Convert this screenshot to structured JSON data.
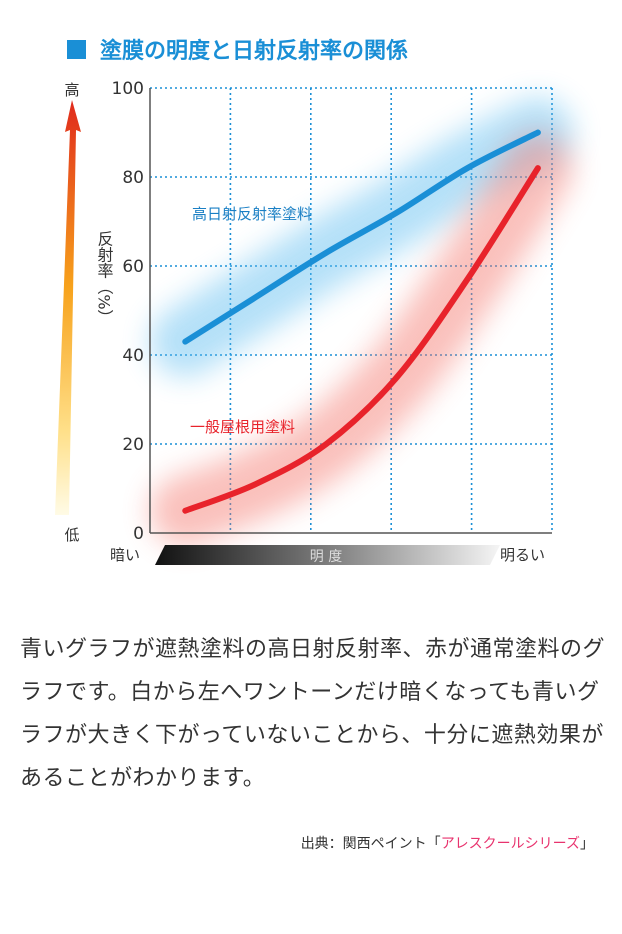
{
  "chart_data": {
    "type": "line",
    "title": "塗膜の明度と日射反射率の関係",
    "ylabel": "反射率（%）",
    "xlabel": "明 度",
    "x_low_label": "暗い",
    "x_high_label": "明るい",
    "y_high_label": "高",
    "y_low_label": "低",
    "ylim": [
      0,
      100
    ],
    "yticks": [
      "0",
      "20",
      "40",
      "60",
      "80",
      "100"
    ],
    "grid": true,
    "series": [
      {
        "name": "高日射反射率塗料",
        "color": "#1a8fd6",
        "x": [
          1,
          2,
          3,
          4,
          5,
          6
        ],
        "y": [
          43,
          53,
          63,
          72,
          82,
          90
        ]
      },
      {
        "name": "一般屋根用塗料",
        "color": "#e8232b",
        "x": [
          1,
          2,
          3,
          4,
          5,
          6
        ],
        "y": [
          5,
          11,
          20,
          35,
          57,
          82
        ]
      }
    ],
    "colors": {
      "title_square": "#1a8fd6",
      "grid": "#1a8fd6",
      "axis": "#555555"
    }
  },
  "caption": "青いグラフが遮熱塗料の高日射反射率、赤が通常塗料のグラフです。白から左へワントーンだけ暗くなっても青いグラフが大きく下がっていないことから、十分に遮熱効果があることがわかります。",
  "source": {
    "prefix": "出典：関西ペイント「",
    "link": "アレスクールシリーズ",
    "suffix": "」"
  }
}
